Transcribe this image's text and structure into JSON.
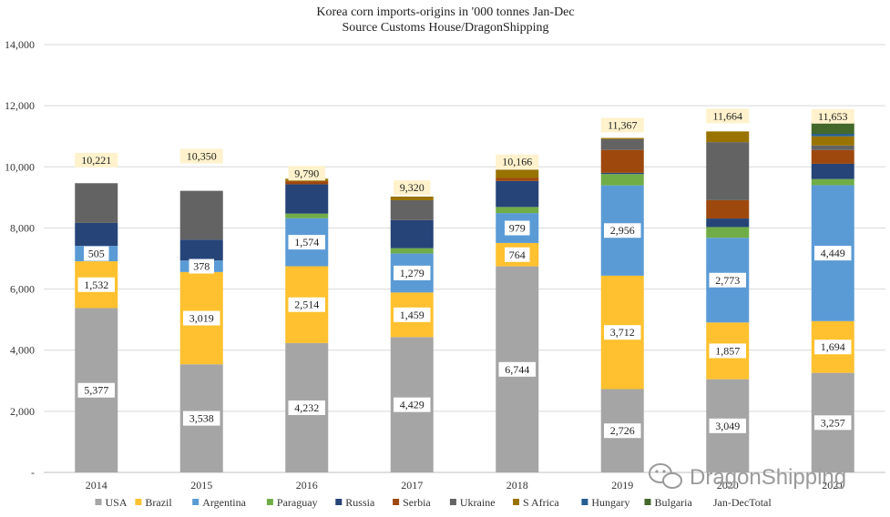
{
  "chart_data": {
    "type": "bar",
    "stacked": true,
    "title": "Korea corn imports-origins in '000 tonnes Jan-Dec",
    "subtitle": "Source Customs House/DragonShipping",
    "categories": [
      "2014",
      "2015",
      "2016",
      "2017",
      "2018",
      "2019",
      "2020",
      "2021"
    ],
    "ylim": [
      0,
      14000
    ],
    "yticks": [
      0,
      2000,
      4000,
      6000,
      8000,
      10000,
      12000,
      14000
    ],
    "ytick_labels": [
      "-",
      "2,000",
      "4,000",
      "6,000",
      "8,000",
      "10,000",
      "12,000",
      "14,000"
    ],
    "grid": true,
    "legend_position": "bottom",
    "series": [
      {
        "name": "USA",
        "color": "#a5a5a5",
        "values": [
          5377,
          3538,
          4232,
          4429,
          6744,
          2726,
          3049,
          3257
        ],
        "labeled": true
      },
      {
        "name": "Brazil",
        "color": "#ffc12f",
        "values": [
          1532,
          3019,
          2514,
          1459,
          764,
          3712,
          1857,
          1694
        ],
        "labeled": true
      },
      {
        "name": "Argentina",
        "color": "#5b9bd5",
        "values": [
          505,
          378,
          1574,
          1279,
          979,
          2956,
          2773,
          4449
        ],
        "labeled": true
      },
      {
        "name": "Paraguay",
        "color": "#70ad47",
        "values": [
          0,
          0,
          150,
          170,
          200,
          370,
          350,
          200
        ],
        "labeled": false
      },
      {
        "name": "Russia",
        "color": "#264478",
        "values": [
          750,
          680,
          960,
          920,
          850,
          40,
          280,
          500
        ],
        "labeled": false
      },
      {
        "name": "Serbia",
        "color": "#9e480e",
        "values": [
          0,
          0,
          100,
          0,
          100,
          750,
          600,
          450
        ],
        "labeled": false
      },
      {
        "name": "Ukraine",
        "color": "#636363",
        "values": [
          1300,
          1600,
          0,
          650,
          0,
          350,
          1900,
          150
        ],
        "labeled": false
      },
      {
        "name": "S Africa",
        "color": "#997300",
        "values": [
          0,
          0,
          80,
          120,
          270,
          40,
          350,
          300
        ],
        "labeled": false
      },
      {
        "name": "Hungary",
        "color": "#255e91",
        "values": [
          0,
          0,
          0,
          0,
          0,
          0,
          0,
          80
        ],
        "labeled": false
      },
      {
        "name": "Bulgaria",
        "color": "#43682b",
        "values": [
          0,
          0,
          0,
          0,
          0,
          0,
          0,
          400
        ],
        "labeled": false
      }
    ],
    "totals": {
      "name": "Jan-DecTotal",
      "values": [
        10221,
        10350,
        9790,
        9320,
        10166,
        11367,
        11664,
        11653
      ],
      "labels": [
        "10,221",
        "10,350",
        "9,790",
        "9,320",
        "10,166",
        "11,367",
        "11,664",
        "11,653"
      ]
    },
    "watermark": "DragonShipping"
  }
}
